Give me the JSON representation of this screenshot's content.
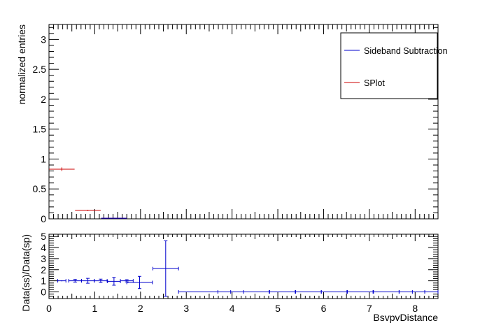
{
  "chart_data": [
    {
      "type": "scatter",
      "panel": "main",
      "xlabel": "",
      "ylabel": "normalized entries",
      "xlim": [
        0,
        8.5
      ],
      "ylim": [
        0,
        3.25
      ],
      "xticks": [
        "0",
        "1",
        "2",
        "3",
        "4",
        "5",
        "6",
        "7",
        "8"
      ],
      "yticks": [
        "0",
        "0.5",
        "1",
        "1.5",
        "2",
        "2.5",
        "3"
      ],
      "legend": {
        "placement": "top-right",
        "entries": [
          {
            "name": "Sideband Subtraction",
            "color": "#0000cc"
          },
          {
            "name": "SPlot",
            "color": "#cc0000"
          }
        ]
      },
      "series": [
        {
          "name": "SPlot",
          "color": "#cc0000",
          "points": [
            {
              "x": 0.28,
              "xerr": 0.28,
              "y": 0.83,
              "yerr": 0.03
            },
            {
              "x": 0.85,
              "xerr": 0.28,
              "y": 0.14,
              "yerr": 0.01
            },
            {
              "x": 1.42,
              "xerr": 0.28,
              "y": 0.01,
              "yerr": 0.005
            }
          ]
        },
        {
          "name": "Sideband Subtraction",
          "color": "#0000cc",
          "points": [
            {
              "x": 1.42,
              "xerr": 0.28,
              "y": 0.01,
              "yerr": 0.005
            }
          ]
        }
      ]
    },
    {
      "type": "scatter",
      "panel": "ratio",
      "xlabel": "BsvpvDistance",
      "ylabel": "Data(ss)/Data(sp)",
      "xlim": [
        0,
        8.5
      ],
      "ylim": [
        -0.6,
        5.2
      ],
      "xticks": [
        "0",
        "1",
        "2",
        "3",
        "4",
        "5",
        "6",
        "7",
        "8"
      ],
      "yticks": [
        "0",
        "1",
        "2",
        "3",
        "4",
        "5"
      ],
      "series": [
        {
          "name": "",
          "color": "#0000cc",
          "points": [
            {
              "x": 0.28,
              "xerr": 0.09,
              "y": 1.0,
              "yerr": 0.05
            },
            {
              "x": 0.57,
              "xerr": 0.14,
              "y": 1.0,
              "yerr": 0.12
            },
            {
              "x": 0.85,
              "xerr": 0.14,
              "y": 1.0,
              "yerr": 0.22
            },
            {
              "x": 1.13,
              "xerr": 0.14,
              "y": 1.0,
              "yerr": 0.15
            },
            {
              "x": 1.42,
              "xerr": 0.14,
              "y": 0.95,
              "yerr": 0.35
            },
            {
              "x": 1.7,
              "xerr": 0.14,
              "y": 1.0,
              "yerr": 0.1
            },
            {
              "x": 1.98,
              "xerr": 0.28,
              "y": 0.85,
              "yerr": 0.55
            },
            {
              "x": 2.55,
              "xerr": 0.28,
              "y": 2.1,
              "yerr": 2.5
            },
            {
              "x": 3.4,
              "xerr": 0.57,
              "y": 0.0,
              "yerr": 0.02
            },
            {
              "x": 3.97,
              "xerr": 0.28,
              "y": 0.0,
              "yerr": 0.02
            },
            {
              "x": 4.53,
              "xerr": 0.28,
              "y": 0.0,
              "yerr": 0.02
            },
            {
              "x": 5.1,
              "xerr": 0.28,
              "y": 0.0,
              "yerr": 0.02
            },
            {
              "x": 5.67,
              "xerr": 0.28,
              "y": 0.0,
              "yerr": 0.02
            },
            {
              "x": 6.23,
              "xerr": 0.28,
              "y": 0.0,
              "yerr": 0.02
            },
            {
              "x": 6.8,
              "xerr": 0.28,
              "y": 0.0,
              "yerr": 0.02
            },
            {
              "x": 7.37,
              "xerr": 0.28,
              "y": 0.0,
              "yerr": 0.02
            },
            {
              "x": 7.93,
              "xerr": 0.28,
              "y": 0.0,
              "yerr": 0.02
            },
            {
              "x": 8.22,
              "xerr": 0.28,
              "y": 0.0,
              "yerr": 0.02
            }
          ]
        }
      ]
    }
  ]
}
